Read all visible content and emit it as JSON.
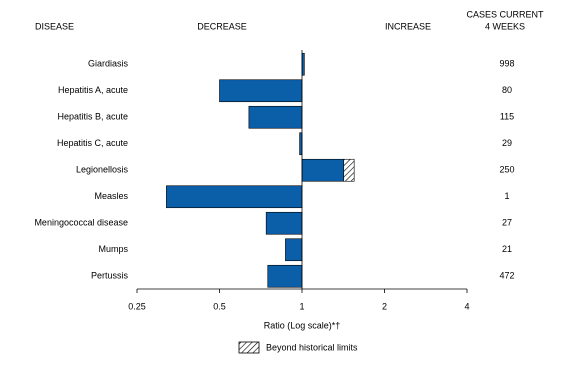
{
  "chart_data": {
    "type": "bar",
    "orientation": "horizontal",
    "log_scale": true,
    "headers": {
      "disease": "DISEASE",
      "decrease": "DECREASE",
      "increase": "INCREASE",
      "cases": [
        "CASES CURRENT",
        "4 WEEKS"
      ]
    },
    "categories": [
      "Giardiasis",
      "Hepatitis A, acute",
      "Hepatitis B, acute",
      "Hepatitis C, acute",
      "Legionellosis",
      "Measles",
      "Meningococcal disease",
      "Mumps",
      "Pertussis"
    ],
    "values": [
      1.02,
      0.5,
      0.64,
      0.98,
      1.55,
      0.32,
      0.74,
      0.87,
      0.75
    ],
    "historical_limit": [
      null,
      null,
      null,
      null,
      1.42,
      null,
      null,
      null,
      null
    ],
    "cases": [
      998,
      80,
      115,
      29,
      250,
      1,
      27,
      21,
      472
    ],
    "color": "#0b5ea8",
    "xlim": [
      0.25,
      4
    ],
    "xticks": [
      0.25,
      0.5,
      1,
      2,
      4
    ],
    "xlabel": "Ratio (Log scale)*†",
    "legend": "Beyond historical limits"
  }
}
